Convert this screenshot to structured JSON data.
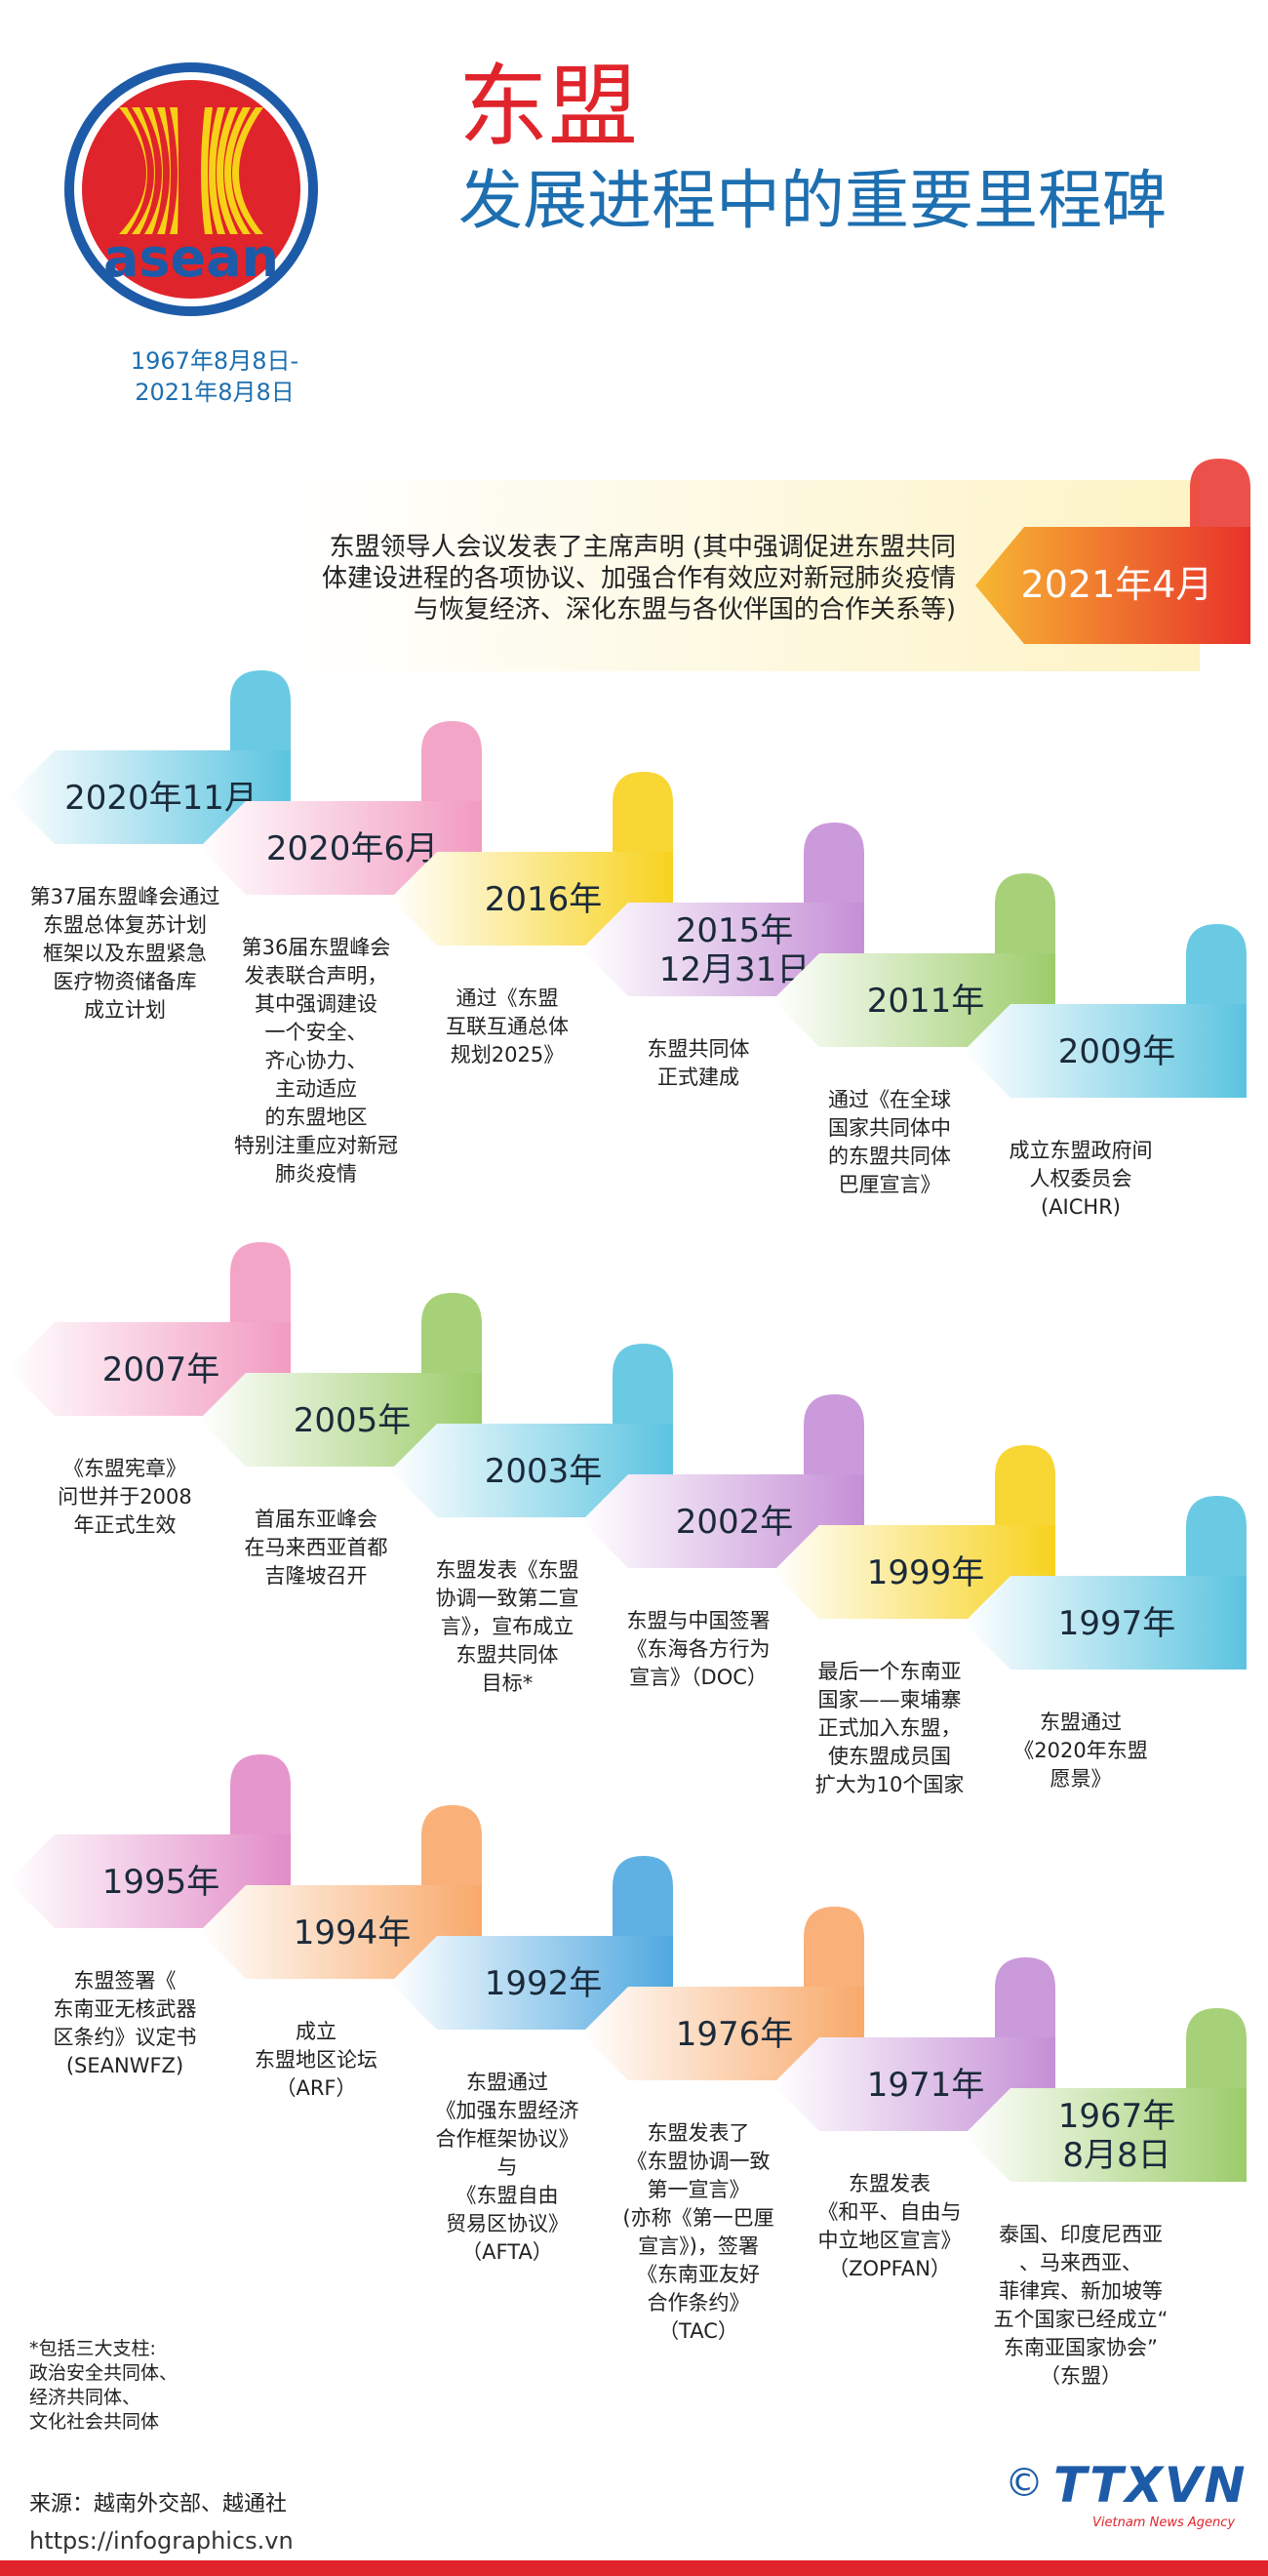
{
  "header": {
    "title": "东盟",
    "subtitle": "发展进程中的重要里程碑",
    "date_range": [
      "1967年8月8日-",
      "2021年8月8日"
    ],
    "logo_text": "asean"
  },
  "featured": {
    "date": "2021年4月",
    "color": "#e8322a",
    "description": [
      "东盟领导人会议发表了主席声明 (其中强调促进东盟共同",
      "体建设进程的各项协议、加强合作有效应对新冠肺炎疫情",
      "与恢复经济、深化东盟与各伙伴国的合作关系等)"
    ]
  },
  "rows": [
    [
      {
        "date": [
          "2020年11月"
        ],
        "color": "#5bc4e0",
        "description": [
          "第37届东盟峰会通过",
          "东盟总体复苏计划",
          "框架以及东盟紧急",
          "医疗物资储备库",
          "成立计划"
        ]
      },
      {
        "date": [
          "2020年6月"
        ],
        "color": "#f29bc1",
        "description": [
          "第36届东盟峰会",
          "发表联合声明，",
          "其中强调建设",
          "一个安全、",
          "齐心协力、",
          "主动适应",
          "的东盟地区",
          "特别注重应对新冠",
          "肺炎疫情"
        ]
      },
      {
        "date": [
          "2016年"
        ],
        "color": "#f7d21e",
        "description": [
          "通过《东盟",
          "互联互通总体",
          "规划2025》"
        ]
      },
      {
        "date": [
          "2015年",
          "12月31日"
        ],
        "color": "#c58fd6",
        "description": [
          "东盟共同体",
          "正式建成"
        ]
      },
      {
        "date": [
          "2011年"
        ],
        "color": "#9ccc6a",
        "description": [
          "通过《在全球",
          "国家共同体中",
          "的东盟共同体",
          "巴厘宣言》"
        ]
      },
      {
        "date": [
          "2009年"
        ],
        "color": "#5bc4e0",
        "description": [
          "成立东盟政府间",
          "人权委员会",
          "(AICHR)"
        ]
      }
    ],
    [
      {
        "date": [
          "2007年"
        ],
        "color": "#f29bc1",
        "description": [
          "《东盟宪章》",
          "问世并于2008",
          "年正式生效"
        ]
      },
      {
        "date": [
          "2005年"
        ],
        "color": "#9ccc6a",
        "description": [
          "首届东亚峰会",
          "在马来西亚首都",
          "吉隆坡召开"
        ]
      },
      {
        "date": [
          "2003年"
        ],
        "color": "#5bc4e0",
        "description": [
          "东盟发表《东盟",
          "协调一致第二宣",
          "言》，宣布成立",
          "东盟共同体",
          "目标*"
        ]
      },
      {
        "date": [
          "2002年"
        ],
        "color": "#c58fd6",
        "description": [
          "东盟与中国签署",
          "《东海各方行为",
          "宣言》（DOC）"
        ]
      },
      {
        "date": [
          "1999年"
        ],
        "color": "#f7d21e",
        "description": [
          "最后一个东南亚",
          "国家——柬埔寨",
          "正式加入东盟，",
          "使东盟成员国",
          "扩大为10个国家"
        ]
      },
      {
        "date": [
          "1997年"
        ],
        "color": "#5bc4e0",
        "description": [
          "东盟通过",
          "《2020年东盟",
          "愿景》"
        ]
      }
    ],
    [
      {
        "date": [
          "1995年"
        ],
        "color": "#e28cc8",
        "description": [
          "东盟签署《",
          "东南亚无核武器",
          "区条约》议定书",
          "(SEANWFZ)"
        ]
      },
      {
        "date": [
          "1994年"
        ],
        "color": "#f8a96a",
        "description": [
          "成立",
          "东盟地区论坛",
          "（ARF）"
        ]
      },
      {
        "date": [
          "1992年"
        ],
        "color": "#4fa8e0",
        "description": [
          "东盟通过",
          "《加强东盟经济",
          "合作框架协议》",
          "与",
          "《东盟自由",
          "贸易区协议》",
          "（AFTA）"
        ]
      },
      {
        "date": [
          "1976年"
        ],
        "color": "#f8a96a",
        "description": [
          "东盟发表了",
          "《东盟协调一致",
          "第一宣言》",
          "(亦称《第一巴厘",
          "宣言》)，签署",
          "《东南亚友好",
          "合作条约》",
          "（TAC）"
        ]
      },
      {
        "date": [
          "1971年"
        ],
        "color": "#c58fd6",
        "description": [
          "东盟发表",
          "《和平、自由与",
          "中立地区宣言》",
          "（ZOPFAN）"
        ]
      },
      {
        "date": [
          "1967年",
          "8月8日"
        ],
        "color": "#9ccc6a",
        "description": [
          "泰国、印度尼西亚",
          "、马来西亚、",
          "菲律宾、新加坡等",
          "五个国家已经成立“",
          "东南亚国家协会”",
          "（东盟）"
        ]
      }
    ]
  ],
  "footnote": [
    "*包括三大支柱:",
    "政治安全共同体、",
    "经济共同体、",
    "文化社会共同体"
  ],
  "source": "来源：越南外交部、越通社",
  "url": "https://infographics.vn",
  "brand": {
    "copyright": "©",
    "name": "TTXVN",
    "tagline": "Vietnam News Agency"
  }
}
